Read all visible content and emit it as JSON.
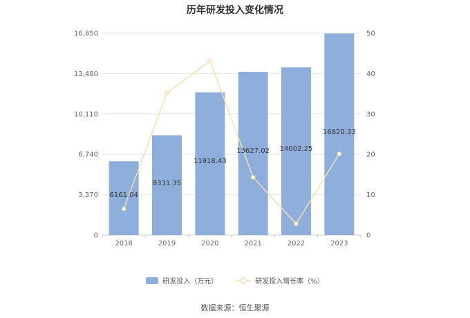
{
  "title": "历年研发投入变化情况",
  "source_text": "数据来源：恒生聚源",
  "colors": {
    "bar": "#8eaedb",
    "line": "#f7dfa9",
    "grid": "#e6e6e6",
    "axis": "#cccccc"
  },
  "chart_data": {
    "type": "bar",
    "title": "历年研发投入变化情况",
    "categories": [
      "2018",
      "2019",
      "2020",
      "2021",
      "2022",
      "2023"
    ],
    "series": [
      {
        "name": "研发投入（万元）",
        "type": "bar",
        "axis": "left",
        "values": [
          6161.04,
          8331.35,
          11918.43,
          13627.02,
          14002.25,
          16820.33
        ]
      },
      {
        "name": "研发投入增长率（%）",
        "type": "line",
        "axis": "right",
        "values": [
          6.5,
          35.2,
          43.1,
          14.3,
          2.8,
          20.1
        ]
      }
    ],
    "bar_labels": [
      "6161.04",
      "8331.35",
      "11918.43",
      "13627.02",
      "14002.25",
      "16820.33"
    ],
    "y_left": {
      "ticks": [
        "0",
        "3,370",
        "6,740",
        "10,110",
        "13,480",
        "16,850"
      ],
      "ylim": [
        0,
        16850
      ]
    },
    "y_right": {
      "ticks": [
        "0",
        "10",
        "20",
        "30",
        "40",
        "50"
      ],
      "ylim": [
        0,
        50
      ]
    },
    "grid": true,
    "legend_position": "bottom"
  }
}
